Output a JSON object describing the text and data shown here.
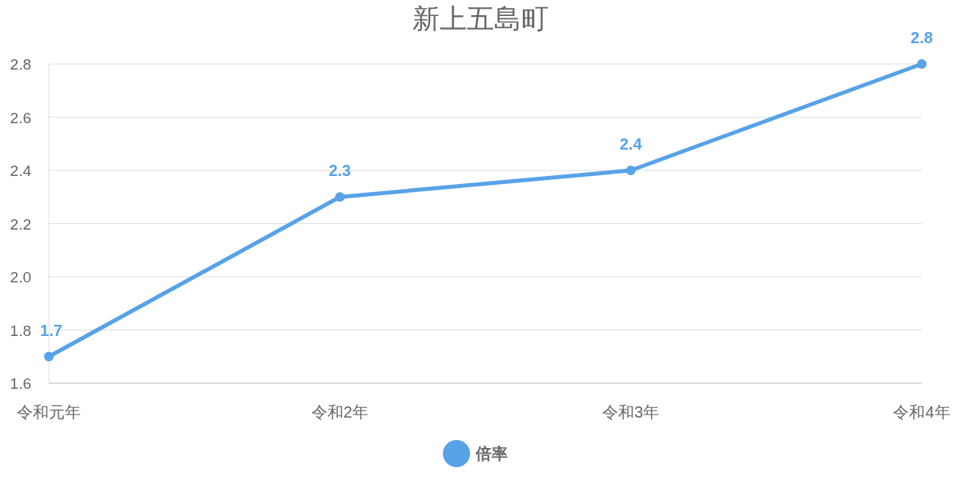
{
  "chart_data": {
    "type": "line",
    "title": "新上五島町",
    "categories": [
      "令和元年",
      "令和2年",
      "令和3年",
      "令和4年"
    ],
    "series": [
      {
        "name": "倍率",
        "color": "#58a2e8",
        "values": [
          1.7,
          2.3,
          2.4,
          2.8
        ]
      }
    ],
    "ylim": [
      1.6,
      2.8
    ],
    "yticks": [
      1.6,
      1.8,
      {
        "value": 2,
        "label": "2.0"
      },
      2.2,
      2.4,
      2.6,
      2.8
    ],
    "grid": "y",
    "legend": "bottom",
    "data_labels": true,
    "marker": "circle",
    "line_style": "solid"
  }
}
